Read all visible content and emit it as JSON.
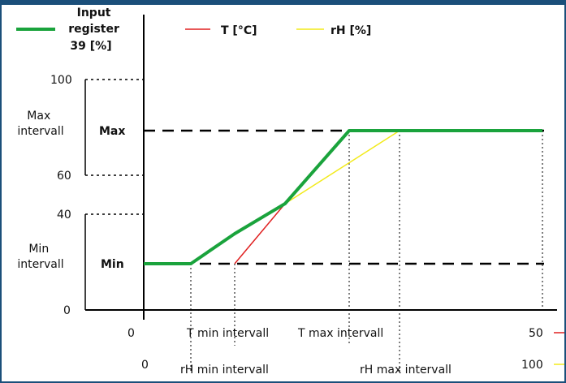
{
  "legend": {
    "main_series_lines": [
      "Input",
      "register",
      "39  [%]"
    ],
    "t_series": "T [°C]",
    "rh_series": "rH [%]"
  },
  "y_axis": {
    "ticks": [
      "100",
      "60",
      "40",
      "0"
    ],
    "max_interval_label": [
      "Max",
      "intervall"
    ],
    "min_interval_label": [
      "Min",
      "intervall"
    ],
    "max_marker": "Max",
    "min_marker": "Min"
  },
  "x_axis": {
    "t_row": {
      "start": "0",
      "min_label": "T min intervall",
      "max_label": "T max intervall",
      "end": "50"
    },
    "rh_row": {
      "start": "0",
      "min_label": "rH min intervall",
      "max_label": "rH max intervall",
      "end": "100"
    }
  },
  "colors": {
    "input_register": "#1aa33c",
    "t_line": "#e02020",
    "rh_line": "#f2ea1a",
    "frame": "#1b4f7a"
  }
}
